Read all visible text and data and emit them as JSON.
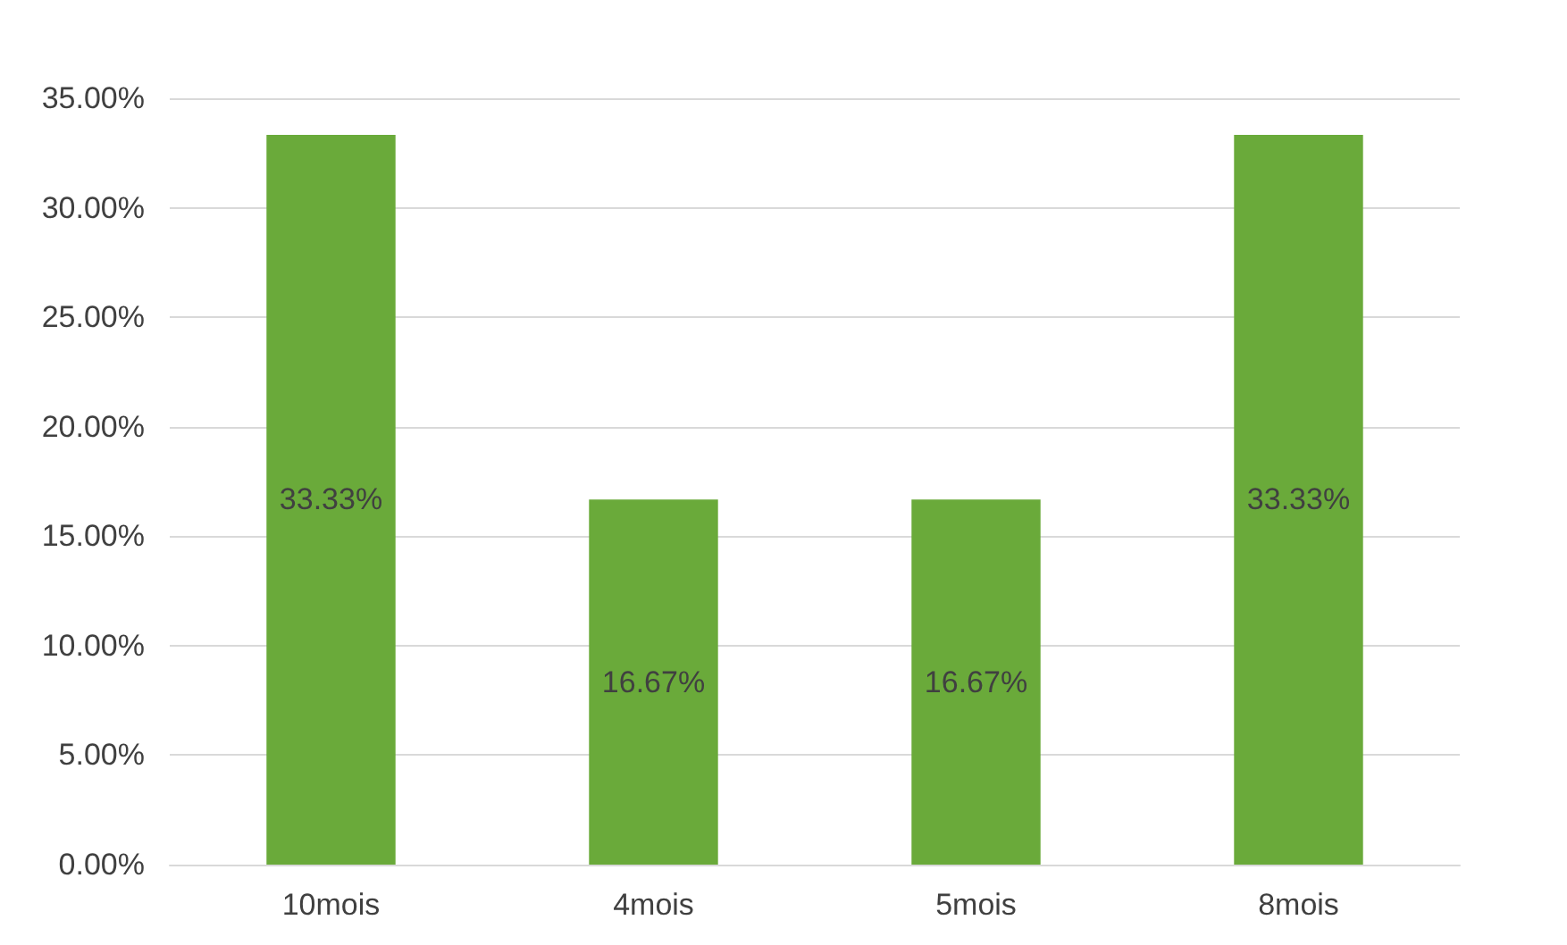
{
  "chart_data": {
    "type": "bar",
    "categories": [
      "10mois",
      "4mois",
      "5mois",
      "8mois"
    ],
    "values": [
      33.33,
      16.67,
      16.67,
      33.33
    ],
    "value_labels": [
      "33.33%",
      "16.67%",
      "16.67%",
      "33.33%"
    ],
    "color": "#6aaa3a",
    "ylim": [
      0,
      35
    ],
    "yticks": [
      {
        "value": 0,
        "label": "0.00%"
      },
      {
        "value": 5,
        "label": "5.00%"
      },
      {
        "value": 10,
        "label": "10.00%"
      },
      {
        "value": 15,
        "label": "15.00%"
      },
      {
        "value": 20,
        "label": "20.00%"
      },
      {
        "value": 25,
        "label": "25.00%"
      },
      {
        "value": 30,
        "label": "30.00%"
      },
      {
        "value": 35,
        "label": "35.00%"
      }
    ],
    "grid": "y"
  }
}
